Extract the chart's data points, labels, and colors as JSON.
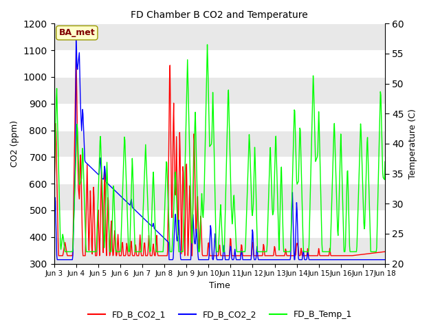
{
  "title": "FD Chamber B CO2 and Temperature",
  "xlabel": "Time",
  "ylabel_left": "CO2 (ppm)",
  "ylabel_right": "Temperature (C)",
  "ylim_left": [
    300,
    1200
  ],
  "ylim_right": [
    20,
    60
  ],
  "yticks_left": [
    300,
    400,
    500,
    600,
    700,
    800,
    900,
    1000,
    1100,
    1200
  ],
  "yticks_right": [
    20,
    25,
    30,
    35,
    40,
    45,
    50,
    55,
    60
  ],
  "xtick_labels": [
    "Jun 3",
    "Jun 4",
    "Jun 5",
    "Jun 6",
    "Jun 7",
    "Jun 8",
    "Jun 9",
    "Jun 10",
    "Jun 11",
    "Jun 12",
    "Jun 13",
    "Jun 14",
    "Jun 15",
    "Jun 16",
    "Jun 17",
    "Jun 18"
  ],
  "legend_labels": [
    "FD_B_CO2_1",
    "FD_B_CO2_2",
    "FD_B_Temp_1"
  ],
  "legend_colors": [
    "red",
    "blue",
    "lime"
  ],
  "annotation_text": "BA_met",
  "band_color_light": "#e8e8e8",
  "band_color_white": "#ffffff",
  "line_width": 1.0,
  "figsize": [
    6.4,
    4.8
  ],
  "dpi": 100
}
